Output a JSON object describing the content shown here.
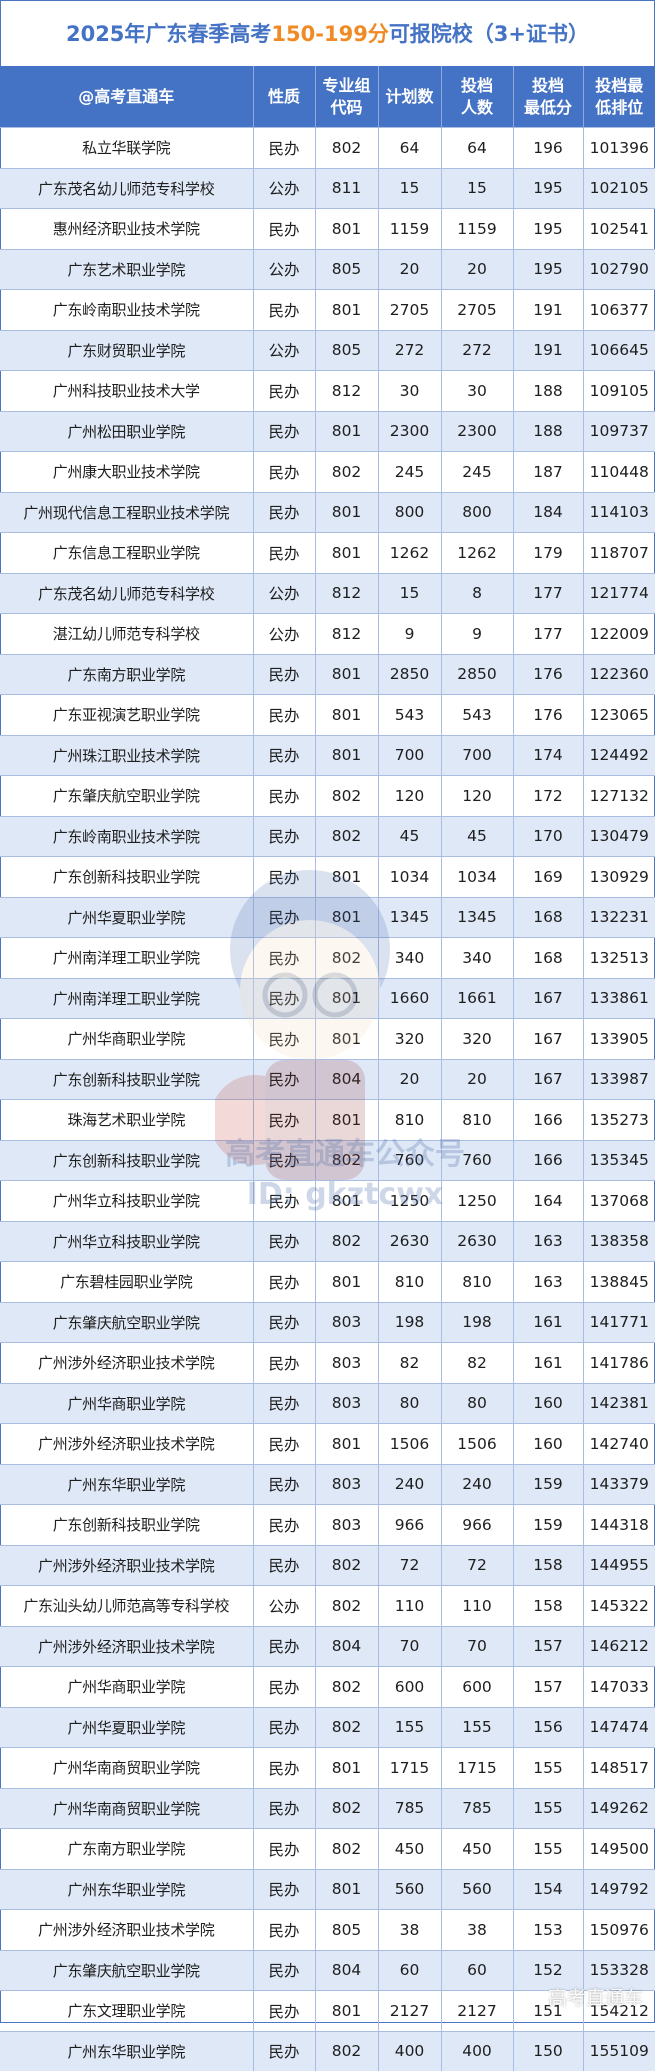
{
  "title": {
    "prefix": "2025年广东春季高考",
    "highlight": "150-199分",
    "suffix": "可报院校（3+证书）"
  },
  "colors": {
    "header_bg": "#4472c4",
    "title_text": "#4472c4",
    "title_highlight": "#f08a24",
    "row_alt_bg": "#dfe8f6"
  },
  "table": {
    "headers": [
      "@高考直通车",
      "性质",
      "专业组代码",
      "计划数",
      "投档人数",
      "投档最低分",
      "投档最低排位"
    ],
    "rows": [
      [
        "私立华联学院",
        "民办",
        "802",
        "64",
        "64",
        "196",
        "101396"
      ],
      [
        "广东茂名幼儿师范专科学校",
        "公办",
        "811",
        "15",
        "15",
        "195",
        "102105"
      ],
      [
        "惠州经济职业技术学院",
        "民办",
        "801",
        "1159",
        "1159",
        "195",
        "102541"
      ],
      [
        "广东艺术职业学院",
        "公办",
        "805",
        "20",
        "20",
        "195",
        "102790"
      ],
      [
        "广东岭南职业技术学院",
        "民办",
        "801",
        "2705",
        "2705",
        "191",
        "106377"
      ],
      [
        "广东财贸职业学院",
        "公办",
        "805",
        "272",
        "272",
        "191",
        "106645"
      ],
      [
        "广州科技职业技术大学",
        "民办",
        "812",
        "30",
        "30",
        "188",
        "109105"
      ],
      [
        "广州松田职业学院",
        "民办",
        "801",
        "2300",
        "2300",
        "188",
        "109737"
      ],
      [
        "广州康大职业技术学院",
        "民办",
        "802",
        "245",
        "245",
        "187",
        "110448"
      ],
      [
        "广州现代信息工程职业技术学院",
        "民办",
        "801",
        "800",
        "800",
        "184",
        "114103"
      ],
      [
        "广东信息工程职业学院",
        "民办",
        "801",
        "1262",
        "1262",
        "179",
        "118707"
      ],
      [
        "广东茂名幼儿师范专科学校",
        "公办",
        "812",
        "15",
        "8",
        "177",
        "121774"
      ],
      [
        "湛江幼儿师范专科学校",
        "公办",
        "812",
        "9",
        "9",
        "177",
        "122009"
      ],
      [
        "广东南方职业学院",
        "民办",
        "801",
        "2850",
        "2850",
        "176",
        "122360"
      ],
      [
        "广东亚视演艺职业学院",
        "民办",
        "801",
        "543",
        "543",
        "176",
        "123065"
      ],
      [
        "广州珠江职业技术学院",
        "民办",
        "801",
        "700",
        "700",
        "174",
        "124492"
      ],
      [
        "广东肇庆航空职业学院",
        "民办",
        "802",
        "120",
        "120",
        "172",
        "127132"
      ],
      [
        "广东岭南职业技术学院",
        "民办",
        "802",
        "45",
        "45",
        "170",
        "130479"
      ],
      [
        "广东创新科技职业学院",
        "民办",
        "801",
        "1034",
        "1034",
        "169",
        "130929"
      ],
      [
        "广州华夏职业学院",
        "民办",
        "801",
        "1345",
        "1345",
        "168",
        "132231"
      ],
      [
        "广州南洋理工职业学院",
        "民办",
        "802",
        "340",
        "340",
        "168",
        "132513"
      ],
      [
        "广州南洋理工职业学院",
        "民办",
        "801",
        "1660",
        "1661",
        "167",
        "133861"
      ],
      [
        "广州华商职业学院",
        "民办",
        "801",
        "320",
        "320",
        "167",
        "133905"
      ],
      [
        "广东创新科技职业学院",
        "民办",
        "804",
        "20",
        "20",
        "167",
        "133987"
      ],
      [
        "珠海艺术职业学院",
        "民办",
        "801",
        "810",
        "810",
        "166",
        "135273"
      ],
      [
        "广东创新科技职业学院",
        "民办",
        "802",
        "760",
        "760",
        "166",
        "135345"
      ],
      [
        "广州华立科技职业学院",
        "民办",
        "801",
        "1250",
        "1250",
        "164",
        "137068"
      ],
      [
        "广州华立科技职业学院",
        "民办",
        "802",
        "2630",
        "2630",
        "163",
        "138358"
      ],
      [
        "广东碧桂园职业学院",
        "民办",
        "801",
        "810",
        "810",
        "163",
        "138845"
      ],
      [
        "广东肇庆航空职业学院",
        "民办",
        "803",
        "198",
        "198",
        "161",
        "141771"
      ],
      [
        "广州涉外经济职业技术学院",
        "民办",
        "803",
        "82",
        "82",
        "161",
        "141786"
      ],
      [
        "广州华商职业学院",
        "民办",
        "803",
        "80",
        "80",
        "160",
        "142381"
      ],
      [
        "广州涉外经济职业技术学院",
        "民办",
        "801",
        "1506",
        "1506",
        "160",
        "142740"
      ],
      [
        "广州东华职业学院",
        "民办",
        "803",
        "240",
        "240",
        "159",
        "143379"
      ],
      [
        "广东创新科技职业学院",
        "民办",
        "803",
        "966",
        "966",
        "159",
        "144318"
      ],
      [
        "广州涉外经济职业技术学院",
        "民办",
        "802",
        "72",
        "72",
        "158",
        "144955"
      ],
      [
        "广东汕头幼儿师范高等专科学校",
        "公办",
        "802",
        "110",
        "110",
        "158",
        "145322"
      ],
      [
        "广州涉外经济职业技术学院",
        "民办",
        "804",
        "70",
        "70",
        "157",
        "146212"
      ],
      [
        "广州华商职业学院",
        "民办",
        "802",
        "600",
        "600",
        "157",
        "147033"
      ],
      [
        "广州华夏职业学院",
        "民办",
        "802",
        "155",
        "155",
        "156",
        "147474"
      ],
      [
        "广州华南商贸职业学院",
        "民办",
        "801",
        "1715",
        "1715",
        "155",
        "148517"
      ],
      [
        "广州华南商贸职业学院",
        "民办",
        "802",
        "785",
        "785",
        "155",
        "149262"
      ],
      [
        "广东南方职业学院",
        "民办",
        "802",
        "450",
        "450",
        "155",
        "149500"
      ],
      [
        "广州东华职业学院",
        "民办",
        "801",
        "560",
        "560",
        "154",
        "149792"
      ],
      [
        "广州涉外经济职业技术学院",
        "民办",
        "805",
        "38",
        "38",
        "153",
        "150976"
      ],
      [
        "广东肇庆航空职业学院",
        "民办",
        "804",
        "60",
        "60",
        "152",
        "153328"
      ],
      [
        "广东文理职业学院",
        "民办",
        "801",
        "2127",
        "2127",
        "151",
        "154212"
      ],
      [
        "广州东华职业学院",
        "民办",
        "802",
        "400",
        "400",
        "150",
        "155109"
      ]
    ]
  },
  "watermark": {
    "center_line1": "高考直通车公众号",
    "center_line2": "ID: gkztcwx",
    "corner": "高考直通车"
  }
}
